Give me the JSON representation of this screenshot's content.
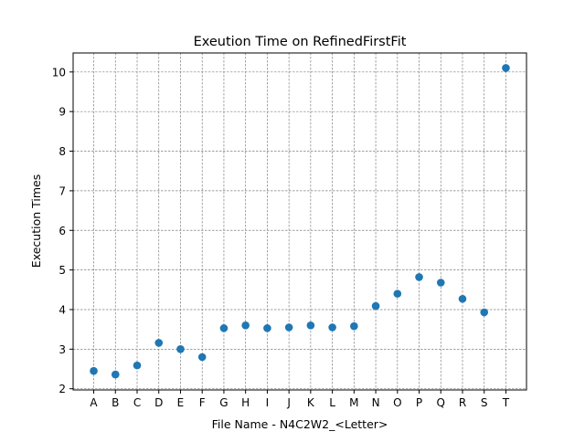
{
  "chart_data": {
    "type": "scatter",
    "title": "Exeution Time on RefinedFirstFit",
    "xlabel": "File Name - N4C2W2_<Letter>",
    "ylabel": "Execution Times",
    "categories": [
      "A",
      "B",
      "C",
      "D",
      "E",
      "F",
      "G",
      "H",
      "I",
      "J",
      "K",
      "L",
      "M",
      "N",
      "O",
      "P",
      "Q",
      "R",
      "S",
      "T"
    ],
    "values": [
      2.45,
      2.36,
      2.59,
      3.16,
      3.0,
      2.8,
      3.53,
      3.6,
      3.53,
      3.55,
      3.6,
      3.55,
      3.58,
      4.09,
      4.4,
      4.82,
      4.68,
      4.27,
      3.93,
      10.1
    ],
    "ylim": [
      1.97,
      10.48
    ],
    "yticks": [
      2,
      3,
      4,
      5,
      6,
      7,
      8,
      9,
      10
    ],
    "grid": true,
    "marker_color": "#1f77b4",
    "grid_color": "#808080"
  }
}
